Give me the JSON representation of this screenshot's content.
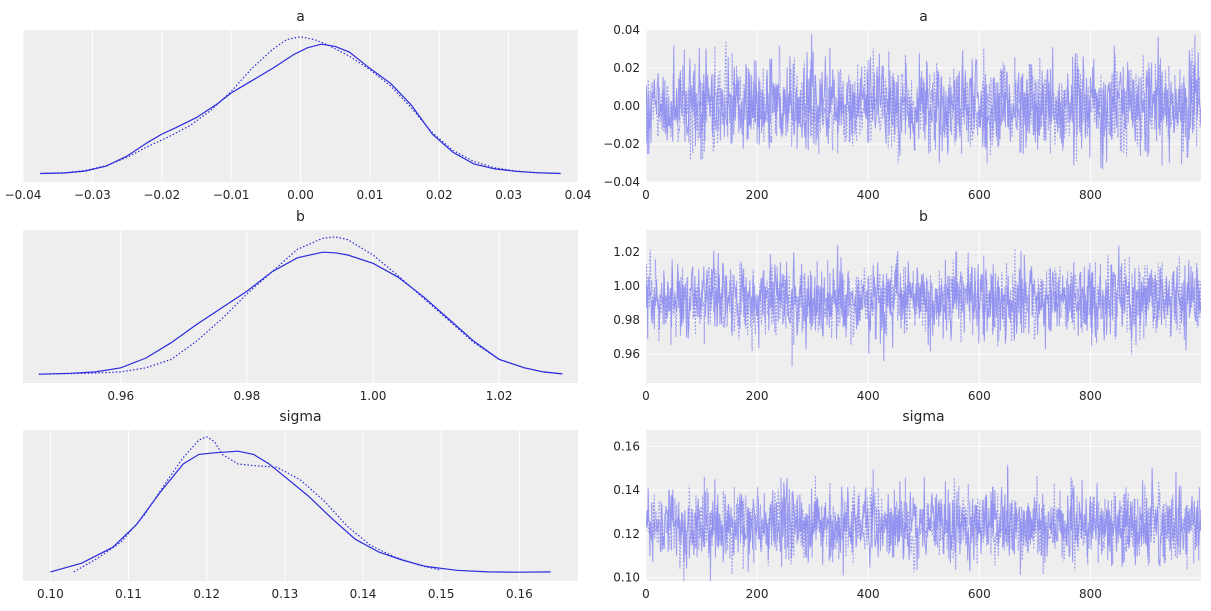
{
  "style": {
    "line_color": "#2b2bdc",
    "trace_color": "#8c8cf0",
    "panel_bg": "#eeeeee",
    "grid_color": "#ffffff"
  },
  "chart_data": [
    {
      "type": "line",
      "title": "a",
      "xlabel": "",
      "ylabel": "",
      "xlim": [
        -0.04,
        0.04
      ],
      "xticks": [
        -0.04,
        -0.03,
        -0.02,
        -0.01,
        0.0,
        0.01,
        0.02,
        0.03,
        0.04
      ],
      "xtick_labels": [
        "−0.04",
        "−0.03",
        "−0.02",
        "−0.01",
        "0.00",
        "0.01",
        "0.02",
        "0.03",
        "0.04"
      ],
      "yticks_shown": false,
      "grid": true,
      "series": [
        {
          "style": "solid",
          "x": [
            -0.0375,
            -0.034,
            -0.031,
            -0.028,
            -0.025,
            -0.022,
            -0.02,
            -0.018,
            -0.015,
            -0.012,
            -0.01,
            -0.007,
            -0.004,
            -0.001,
            0.001,
            0.003,
            0.005,
            0.007,
            0.01,
            0.013,
            0.016,
            0.019,
            0.022,
            0.025,
            0.028,
            0.031,
            0.034,
            0.0375
          ],
          "y": [
            0.1,
            0.3,
            1.0,
            2.8,
            6.5,
            11.5,
            14.5,
            16.8,
            20.5,
            25.5,
            29.5,
            34.0,
            38.5,
            43.5,
            46.0,
            47.3,
            46.5,
            44.5,
            38.5,
            33.0,
            25.0,
            14.5,
            7.8,
            3.6,
            1.8,
            0.9,
            0.4,
            0.1
          ]
        },
        {
          "style": "dotted",
          "x": [
            -0.0375,
            -0.034,
            -0.031,
            -0.028,
            -0.025,
            -0.022,
            -0.019,
            -0.016,
            -0.013,
            -0.01,
            -0.007,
            -0.004,
            -0.002,
            0.0,
            0.002,
            0.004,
            0.007,
            0.01,
            0.013,
            0.016,
            0.019,
            0.022,
            0.025,
            0.028,
            0.031,
            0.034,
            0.0375
          ],
          "y": [
            0.1,
            0.4,
            1.2,
            3.0,
            6.0,
            10.0,
            13.5,
            17.5,
            23.0,
            30.0,
            38.5,
            45.5,
            49.0,
            50.0,
            49.0,
            47.0,
            43.0,
            38.0,
            32.0,
            24.0,
            15.0,
            8.5,
            4.5,
            2.2,
            1.0,
            0.4,
            0.1
          ]
        }
      ]
    },
    {
      "type": "line",
      "title": "a",
      "xlabel": "",
      "ylabel": "",
      "xlim": [
        0,
        999
      ],
      "ylim": [
        -0.04,
        0.04
      ],
      "xticks": [
        0,
        200,
        400,
        600,
        800
      ],
      "xtick_labels": [
        "0",
        "200",
        "400",
        "600",
        "800"
      ],
      "yticks": [
        -0.04,
        -0.02,
        0.0,
        0.02,
        0.04
      ],
      "ytick_labels": [
        "−0.04",
        "−0.02",
        "0.00",
        "0.02",
        "0.04"
      ],
      "grid": true,
      "trace": {
        "n_draws": 1000,
        "n_chains": 2,
        "mean": 0.0,
        "sd": 0.012
      }
    },
    {
      "type": "line",
      "title": "b",
      "xlabel": "",
      "ylabel": "",
      "xlim": [
        0.9445,
        1.0325
      ],
      "xticks": [
        0.96,
        0.98,
        1.0,
        1.02
      ],
      "xtick_labels": [
        "0.96",
        "0.98",
        "1.00",
        "1.02"
      ],
      "yticks_shown": false,
      "grid": true,
      "series": [
        {
          "style": "solid",
          "x": [
            0.947,
            0.952,
            0.956,
            0.96,
            0.964,
            0.968,
            0.972,
            0.976,
            0.98,
            0.984,
            0.988,
            0.992,
            0.994,
            0.996,
            1.0,
            1.004,
            1.008,
            1.012,
            1.016,
            1.02,
            1.024,
            1.027,
            1.03
          ],
          "y": [
            0.2,
            0.5,
            1.0,
            2.5,
            6.0,
            11.5,
            18.0,
            24.0,
            30.0,
            37.0,
            42.0,
            44.0,
            43.8,
            43.0,
            40.0,
            35.0,
            28.0,
            20.0,
            12.0,
            5.5,
            2.5,
            1.0,
            0.3
          ]
        },
        {
          "style": "dotted",
          "x": [
            0.947,
            0.955,
            0.96,
            0.964,
            0.968,
            0.972,
            0.976,
            0.98,
            0.984,
            0.988,
            0.992,
            0.994,
            0.996,
            1.0,
            1.004,
            1.008,
            1.012,
            1.016,
            1.02,
            1.024,
            1.027,
            1.03
          ],
          "y": [
            0.2,
            0.5,
            1.0,
            2.5,
            5.5,
            12.0,
            20.0,
            29.0,
            37.0,
            45.0,
            49.0,
            49.5,
            48.5,
            43.0,
            35.5,
            27.5,
            19.5,
            11.5,
            5.5,
            2.5,
            1.0,
            0.3
          ]
        }
      ]
    },
    {
      "type": "line",
      "title": "b",
      "xlabel": "",
      "ylabel": "",
      "xlim": [
        0,
        999
      ],
      "ylim": [
        0.943,
        1.033
      ],
      "xticks": [
        0,
        200,
        400,
        600,
        800
      ],
      "xtick_labels": [
        "0",
        "200",
        "400",
        "600",
        "800"
      ],
      "yticks": [
        0.96,
        0.98,
        1.0,
        1.02
      ],
      "ytick_labels": [
        "0.96",
        "0.98",
        "1.00",
        "1.02"
      ],
      "grid": true,
      "trace": {
        "n_draws": 1000,
        "n_chains": 2,
        "mean": 0.992,
        "sd": 0.011
      }
    },
    {
      "type": "line",
      "title": "sigma",
      "xlabel": "",
      "ylabel": "",
      "xlim": [
        0.0965,
        0.1675
      ],
      "xticks": [
        0.1,
        0.11,
        0.12,
        0.13,
        0.14,
        0.15,
        0.16
      ],
      "xtick_labels": [
        "0.10",
        "0.11",
        "0.12",
        "0.13",
        "0.14",
        "0.15",
        "0.16"
      ],
      "yticks_shown": false,
      "grid": true,
      "series": [
        {
          "style": "solid",
          "x": [
            0.1,
            0.104,
            0.108,
            0.111,
            0.114,
            0.117,
            0.119,
            0.121,
            0.124,
            0.126,
            0.128,
            0.13,
            0.133,
            0.136,
            0.139,
            0.142,
            0.145,
            0.148,
            0.152,
            0.156,
            0.16,
            0.164
          ],
          "y": [
            0.3,
            3.0,
            8.0,
            15.0,
            25.0,
            34.0,
            37.0,
            37.5,
            38.0,
            37.0,
            34.0,
            30.0,
            24.0,
            17.0,
            10.5,
            6.5,
            4.0,
            2.0,
            0.8,
            0.3,
            0.2,
            0.3
          ]
        },
        {
          "style": "dotted",
          "x": [
            0.103,
            0.106,
            0.109,
            0.112,
            0.115,
            0.117,
            0.119,
            0.12,
            0.121,
            0.122,
            0.124,
            0.126,
            0.129,
            0.132,
            0.135,
            0.138,
            0.141,
            0.144,
            0.147,
            0.15
          ],
          "y": [
            0.3,
            4.5,
            9.5,
            18.0,
            29.0,
            36.0,
            41.5,
            42.5,
            41.0,
            37.0,
            34.0,
            33.5,
            33.0,
            29.0,
            22.5,
            14.5,
            8.5,
            5.0,
            2.5,
            0.8
          ]
        }
      ]
    },
    {
      "type": "line",
      "title": "sigma",
      "xlabel": "",
      "ylabel": "",
      "xlim": [
        0,
        999
      ],
      "ylim": [
        0.0985,
        0.1675
      ],
      "xticks": [
        0,
        200,
        400,
        600,
        800
      ],
      "xtick_labels": [
        "0",
        "200",
        "400",
        "600",
        "800"
      ],
      "yticks": [
        0.1,
        0.12,
        0.14,
        0.16
      ],
      "ytick_labels": [
        "0.10",
        "0.12",
        "0.14",
        "0.16"
      ],
      "grid": true,
      "trace": {
        "n_draws": 1000,
        "n_chains": 2,
        "mean": 0.124,
        "sd": 0.0085
      }
    }
  ]
}
